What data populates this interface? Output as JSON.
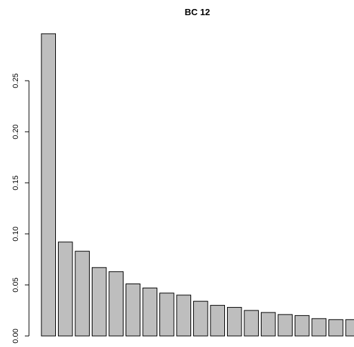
{
  "chart_data": {
    "type": "bar",
    "title": "BC 12",
    "xlabel": "",
    "ylabel": "",
    "ylim": [
      0,
      0.3
    ],
    "y_ticks": [
      "0.00",
      "0.05",
      "0.10",
      "0.15",
      "0.20",
      "0.25"
    ],
    "y_tick_values": [
      0,
      0.05,
      0.1,
      0.15,
      0.2,
      0.25
    ],
    "grid": false,
    "legend": "none",
    "values": [
      0.296,
      0.092,
      0.083,
      0.067,
      0.063,
      0.051,
      0.047,
      0.042,
      0.04,
      0.034,
      0.03,
      0.028,
      0.025,
      0.023,
      0.021,
      0.02,
      0.017,
      0.016,
      0.016
    ],
    "colors": {
      "bar_fill": "#bebebe",
      "bar_stroke": "#000000",
      "axis": "#000000",
      "text": "#000000"
    }
  }
}
